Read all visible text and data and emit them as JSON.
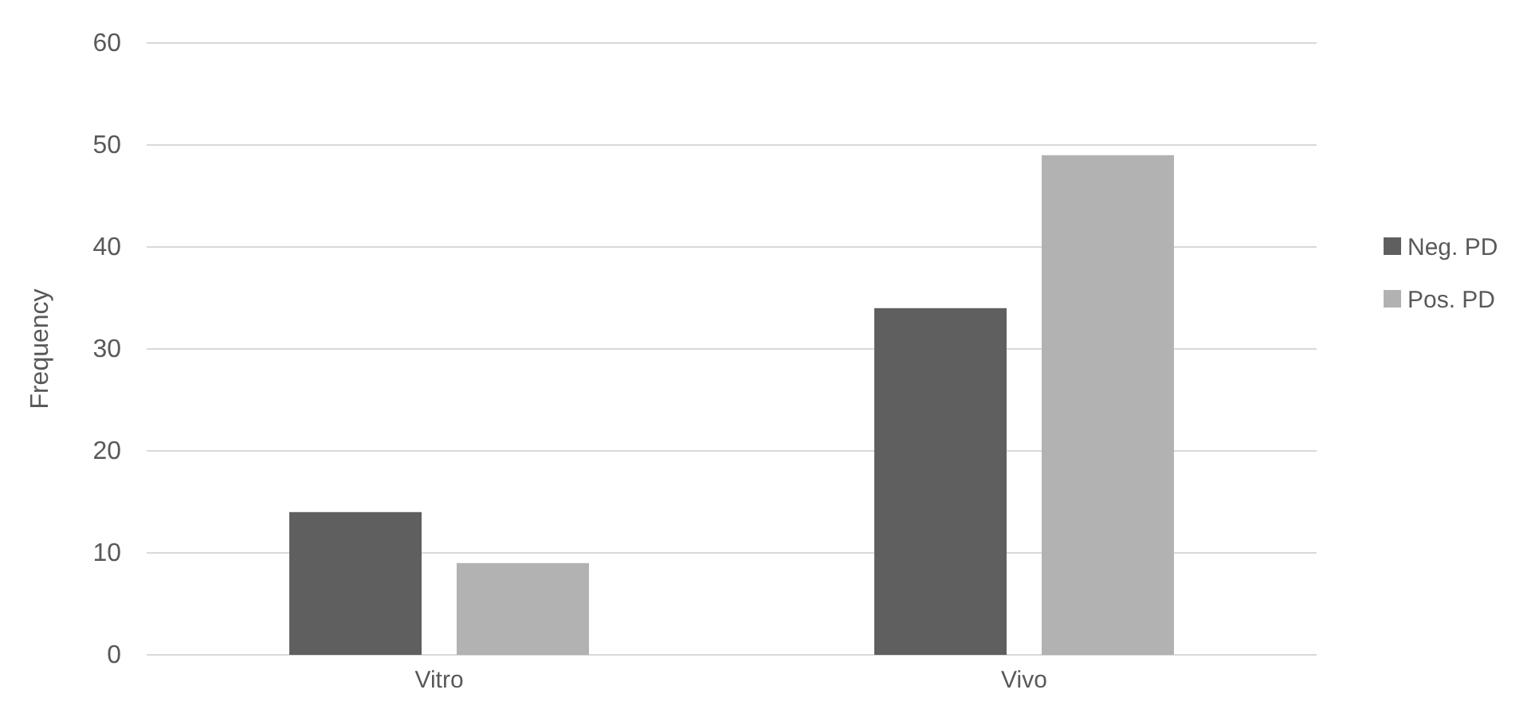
{
  "chart_data": {
    "type": "bar",
    "ylabel": "Frequency",
    "categories": [
      "Vitro",
      "Vivo"
    ],
    "series": [
      {
        "name": "Neg. PD",
        "color": "#5f5f5f",
        "values": [
          14,
          34
        ]
      },
      {
        "name": "Pos. PD",
        "color": "#b2b2b2",
        "values": [
          9,
          49
        ]
      }
    ],
    "ylim": [
      0,
      60
    ],
    "yticks": [
      0,
      10,
      20,
      30,
      40,
      50,
      60
    ],
    "grid": "y",
    "legend": "right"
  }
}
